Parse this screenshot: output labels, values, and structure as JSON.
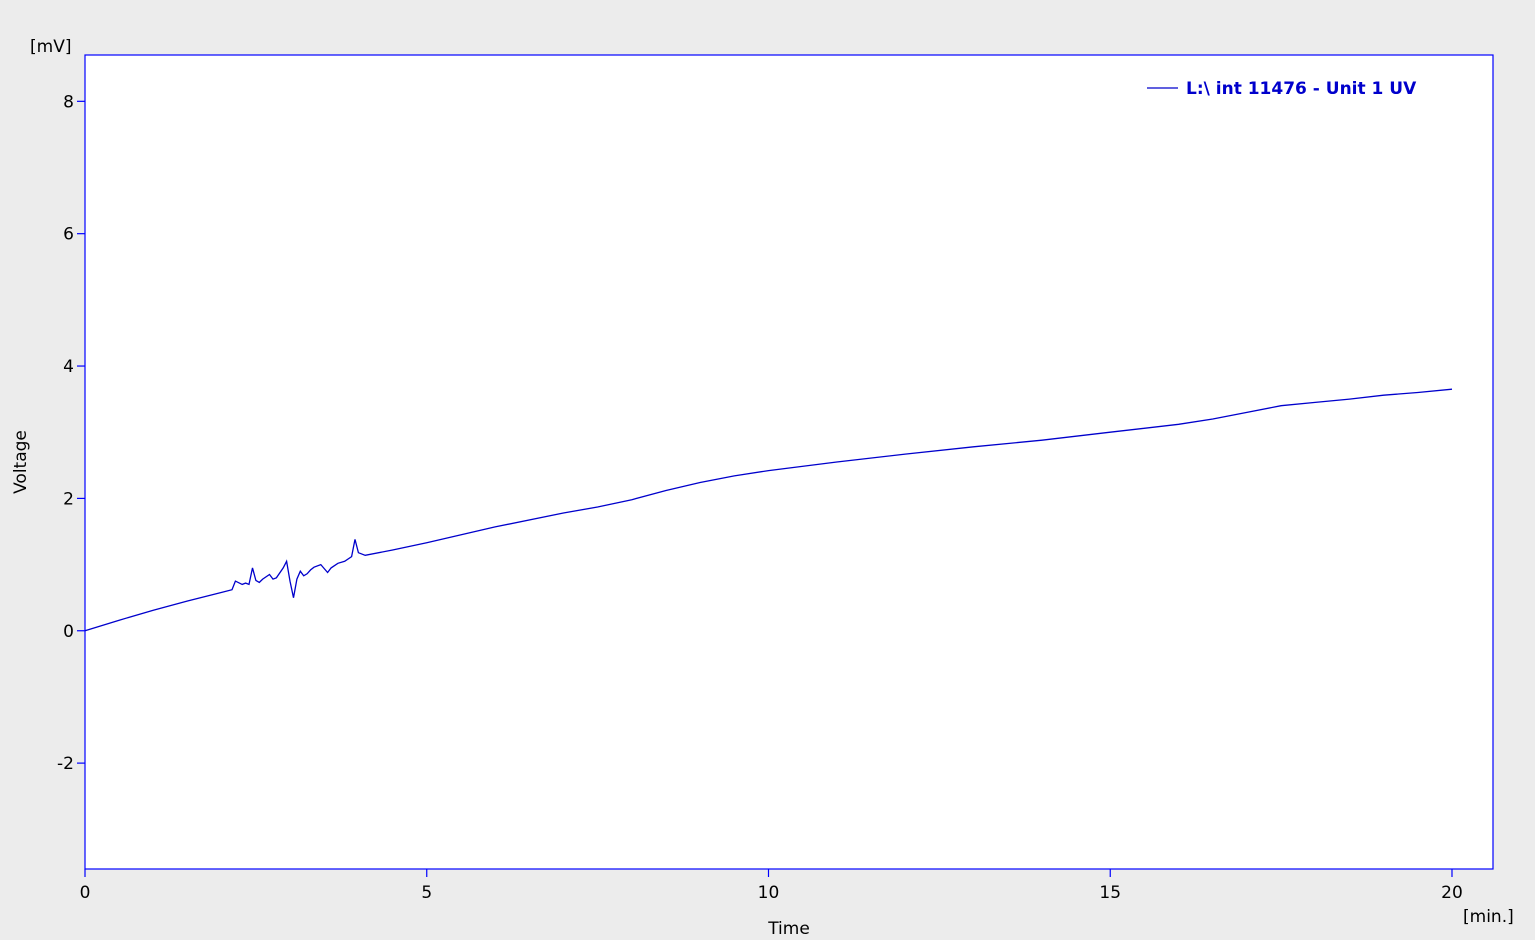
{
  "chart_data": {
    "type": "line",
    "title": "",
    "xlabel": "Time",
    "ylabel": "Voltage",
    "x_unit": "[min.]",
    "y_unit": "[mV]",
    "xlim": [
      0,
      20.6
    ],
    "ylim": [
      -3.6,
      8.7
    ],
    "x_ticks": [
      0,
      5,
      10,
      15,
      20
    ],
    "y_ticks": [
      -2,
      0,
      2,
      4,
      6,
      8
    ],
    "grid": false,
    "legend_position": "top-right",
    "colors": {
      "series": "#0000cc",
      "axis": "#0000ff",
      "plot_bg": "#ffffff",
      "page_bg": "#ececec"
    },
    "series": [
      {
        "name": "L:\\ int 11476 - Unit 1 UV",
        "x": [
          0,
          0.5,
          1.0,
          1.5,
          2.0,
          2.15,
          2.2,
          2.3,
          2.35,
          2.4,
          2.45,
          2.5,
          2.55,
          2.6,
          2.7,
          2.75,
          2.8,
          2.9,
          2.95,
          3.0,
          3.05,
          3.1,
          3.15,
          3.2,
          3.25,
          3.3,
          3.35,
          3.45,
          3.55,
          3.6,
          3.7,
          3.8,
          3.9,
          3.95,
          4.0,
          4.1,
          4.5,
          5.0,
          6.0,
          7.0,
          7.5,
          8.0,
          8.5,
          9.0,
          9.5,
          10.0,
          11.0,
          12.0,
          13.0,
          14.0,
          15.0,
          16.0,
          16.5,
          17.0,
          17.5,
          18.0,
          18.5,
          19.0,
          19.5,
          20.0
        ],
        "y": [
          0.0,
          0.16,
          0.31,
          0.45,
          0.58,
          0.62,
          0.75,
          0.7,
          0.72,
          0.7,
          0.95,
          0.76,
          0.73,
          0.78,
          0.85,
          0.78,
          0.8,
          0.95,
          1.05,
          0.75,
          0.5,
          0.78,
          0.9,
          0.83,
          0.86,
          0.92,
          0.96,
          1.0,
          0.88,
          0.95,
          1.02,
          1.05,
          1.12,
          1.38,
          1.18,
          1.14,
          1.22,
          1.33,
          1.57,
          1.78,
          1.87,
          1.98,
          2.12,
          2.24,
          2.34,
          2.42,
          2.55,
          2.67,
          2.78,
          2.88,
          3.0,
          3.12,
          3.2,
          3.3,
          3.4,
          3.45,
          3.5,
          3.56,
          3.6,
          3.65
        ]
      }
    ]
  }
}
